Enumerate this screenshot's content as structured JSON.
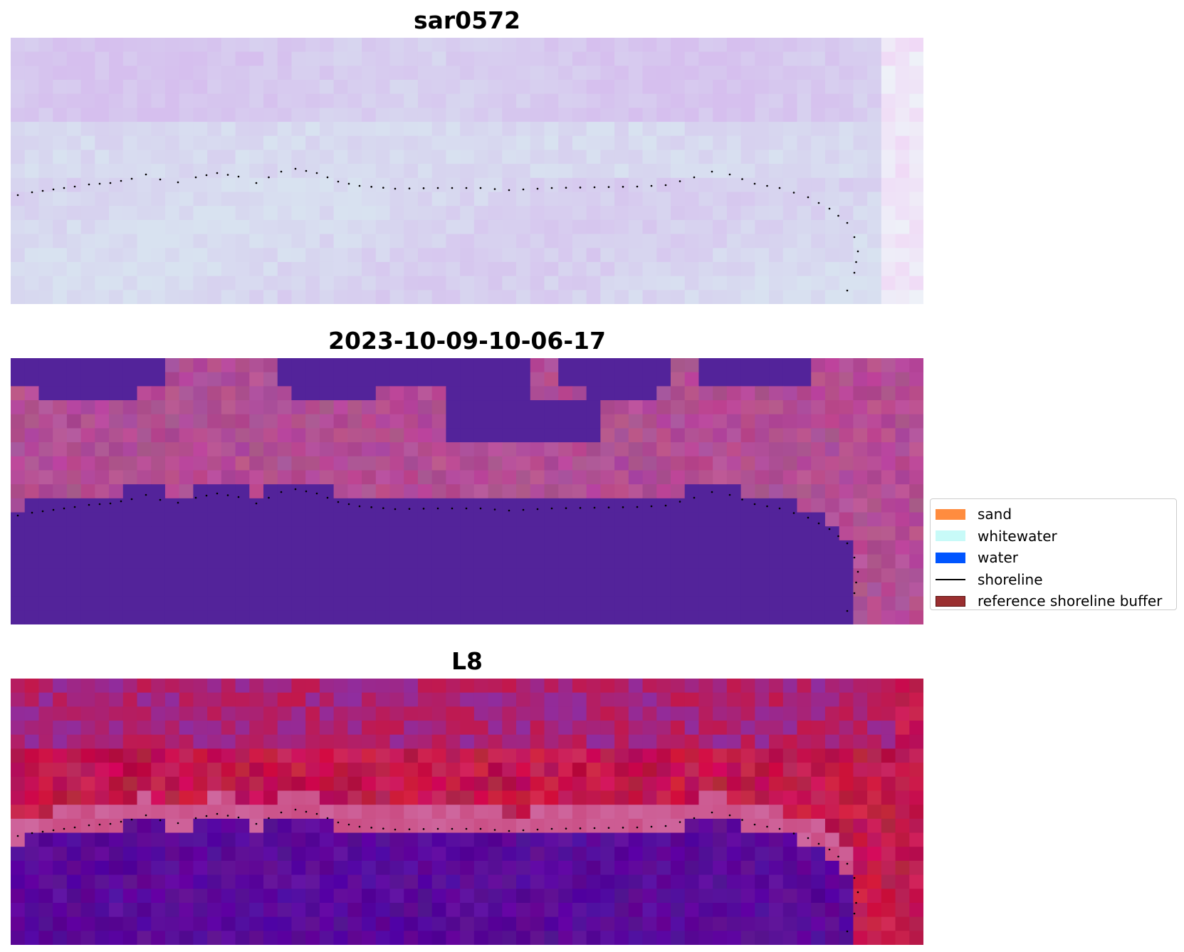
{
  "panels": [
    {
      "title": "sar0572",
      "palette": "sar",
      "shoreline_color": "#000000"
    },
    {
      "title": "2023-10-09-10-06-17",
      "palette": "class",
      "shoreline_color": "#000000"
    },
    {
      "title": "L8",
      "palette": "ndwi",
      "shoreline_color": "#000000"
    }
  ],
  "legend": {
    "items": [
      {
        "label": "sand",
        "kind": "patch",
        "color": "#ff8c3f"
      },
      {
        "label": "whitewater",
        "kind": "patch",
        "color": "#c8faf8"
      },
      {
        "label": "water",
        "kind": "patch",
        "color": "#0055ff"
      },
      {
        "label": "shoreline",
        "kind": "line",
        "color": "#000000"
      },
      {
        "label": "reference shoreline buffer",
        "kind": "patch",
        "color": "#9a2f30",
        "edge": "#5a1010"
      }
    ]
  },
  "colors": {
    "class_water": "#53239a",
    "class_land": "#b24e94",
    "sar_light": "#d8e2f0",
    "sar_purple": "#d6bfee",
    "ndwi_land": "#c2184c",
    "ndwi_water": "#5a0a9a"
  }
}
